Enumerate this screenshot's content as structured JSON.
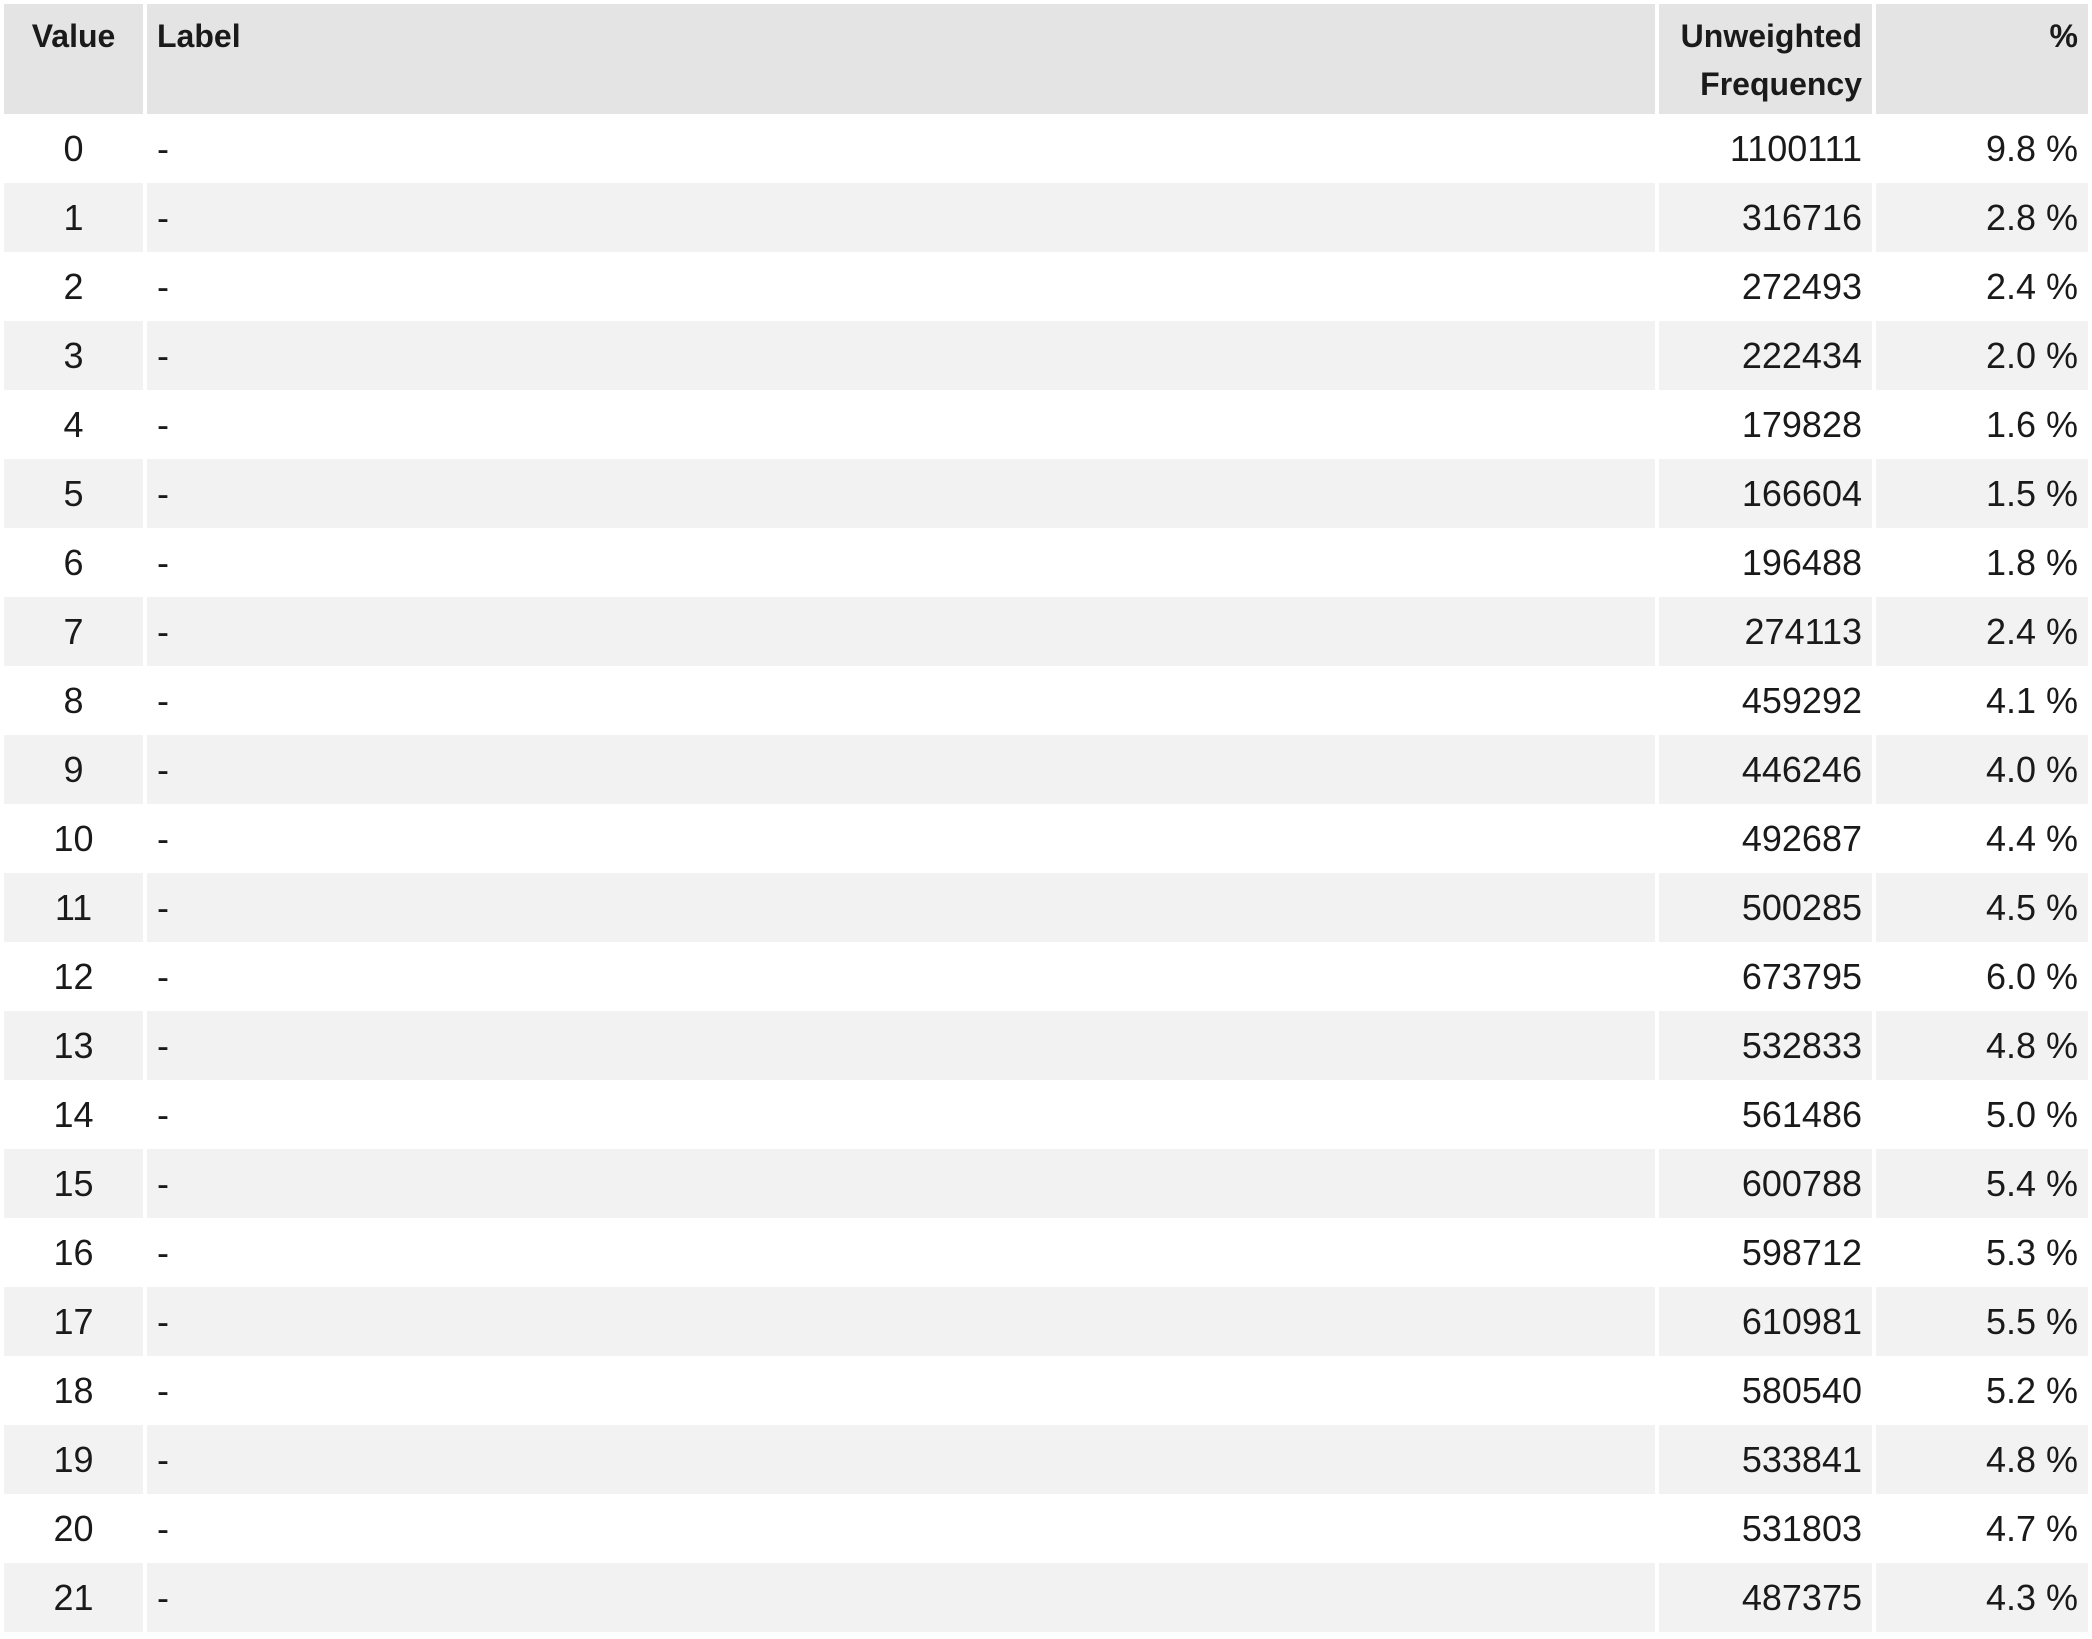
{
  "table": {
    "headers": {
      "value": "Value",
      "label": "Label",
      "freq_line1": "Unweighted",
      "freq_line2": "Frequency",
      "pct": "%"
    },
    "rows": [
      {
        "value": "0",
        "label": "-",
        "freq": "1100111",
        "pct": "9.8 %"
      },
      {
        "value": "1",
        "label": "-",
        "freq": "316716",
        "pct": "2.8 %"
      },
      {
        "value": "2",
        "label": "-",
        "freq": "272493",
        "pct": "2.4 %"
      },
      {
        "value": "3",
        "label": "-",
        "freq": "222434",
        "pct": "2.0 %"
      },
      {
        "value": "4",
        "label": "-",
        "freq": "179828",
        "pct": "1.6 %"
      },
      {
        "value": "5",
        "label": "-",
        "freq": "166604",
        "pct": "1.5 %"
      },
      {
        "value": "6",
        "label": "-",
        "freq": "196488",
        "pct": "1.8 %"
      },
      {
        "value": "7",
        "label": "-",
        "freq": "274113",
        "pct": "2.4 %"
      },
      {
        "value": "8",
        "label": "-",
        "freq": "459292",
        "pct": "4.1 %"
      },
      {
        "value": "9",
        "label": "-",
        "freq": "446246",
        "pct": "4.0 %"
      },
      {
        "value": "10",
        "label": "-",
        "freq": "492687",
        "pct": "4.4 %"
      },
      {
        "value": "11",
        "label": "-",
        "freq": "500285",
        "pct": "4.5 %"
      },
      {
        "value": "12",
        "label": "-",
        "freq": "673795",
        "pct": "6.0 %"
      },
      {
        "value": "13",
        "label": "-",
        "freq": "532833",
        "pct": "4.8 %"
      },
      {
        "value": "14",
        "label": "-",
        "freq": "561486",
        "pct": "5.0 %"
      },
      {
        "value": "15",
        "label": "-",
        "freq": "600788",
        "pct": "5.4 %"
      },
      {
        "value": "16",
        "label": "-",
        "freq": "598712",
        "pct": "5.3 %"
      },
      {
        "value": "17",
        "label": "-",
        "freq": "610981",
        "pct": "5.5 %"
      },
      {
        "value": "18",
        "label": "-",
        "freq": "580540",
        "pct": "5.2 %"
      },
      {
        "value": "19",
        "label": "-",
        "freq": "533841",
        "pct": "4.8 %"
      },
      {
        "value": "20",
        "label": "-",
        "freq": "531803",
        "pct": "4.7 %"
      },
      {
        "value": "21",
        "label": "-",
        "freq": "487375",
        "pct": "4.3 %"
      }
    ]
  }
}
